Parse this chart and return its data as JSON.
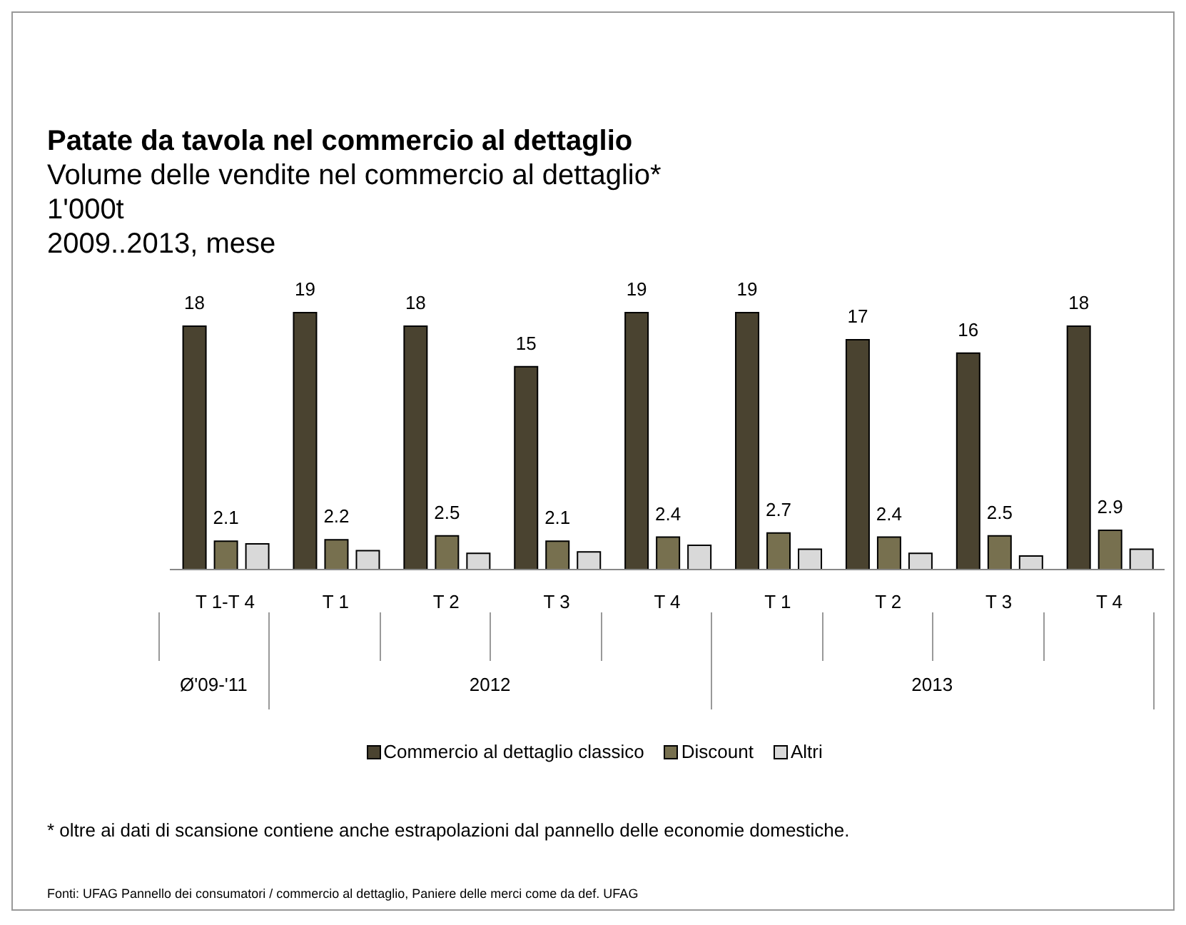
{
  "chart_data": {
    "type": "bar",
    "title": "Patate da tavola nel commercio al dettaglio",
    "subtitle": "Volume delle vendite nel commercio al dettaglio*\n1'000t\n2009..2013, mese",
    "categories": [
      "T 1-T 4",
      "T 1",
      "T 2",
      "T 3",
      "T 4",
      "T 1",
      "T 2",
      "T 3",
      "T 4"
    ],
    "series": [
      {
        "name": "Commercio al dettaglio classico",
        "color": "#4a4330",
        "values": [
          18,
          19,
          18,
          15,
          19,
          19,
          17,
          16,
          18
        ],
        "value_labels": [
          "18",
          "19",
          "18",
          "15",
          "19",
          "19",
          "17",
          "16",
          "18"
        ]
      },
      {
        "name": "Discount",
        "color": "#77704f",
        "values": [
          2.1,
          2.2,
          2.5,
          2.1,
          2.4,
          2.7,
          2.4,
          2.5,
          2.9
        ],
        "value_labels": [
          "2.1",
          "2.2",
          "2.5",
          "2.1",
          "2.4",
          "2.7",
          "2.4",
          "2.5",
          "2.9"
        ]
      },
      {
        "name": "Altri",
        "color": "#d9d9d9",
        "values": [
          1.9,
          1.4,
          1.2,
          1.3,
          1.8,
          1.5,
          1.2,
          1.0,
          1.5
        ],
        "value_labels": [
          null,
          null,
          null,
          null,
          null,
          null,
          null,
          null,
          null
        ]
      }
    ],
    "annotations": [
      "Ø'09-'11",
      "2012",
      "2013",
      "* oltre ai dati di scansione contiene anche estrapolazioni dal pannello delle economie domestiche.",
      "Fonti: UFAG Pannello dei consumatori / commercio al dettaglio, Paniere delle merci come da def. UFAG"
    ],
    "legend": "bottom",
    "grid": false
  }
}
